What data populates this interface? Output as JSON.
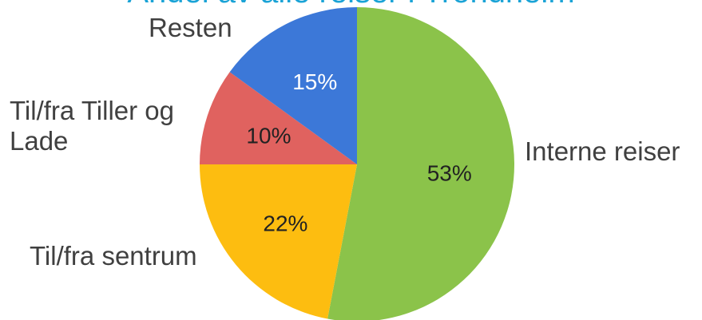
{
  "chart_data": {
    "type": "pie",
    "title": "Andel av alle reiser i Trondheim",
    "start_angle_deg": 0,
    "direction": "clockwise",
    "slices": [
      {
        "label": "Interne reiser",
        "value": 53,
        "value_label": "53%",
        "color": "#8bc34a"
      },
      {
        "label": "Til/fra sentrum",
        "value": 22,
        "value_label": "22%",
        "color": "#fdbd10"
      },
      {
        "label": "Til/fra Tiller og Lade",
        "value": 10,
        "value_label": "10%",
        "color": "#e0625f"
      },
      {
        "label": "Resten",
        "value": 15,
        "value_label": "15%",
        "color": "#3c78d8"
      }
    ]
  },
  "labels": {
    "slice0": "Interne reiser",
    "slice1": "Til/fra sentrum",
    "slice2": "Til/fra Tiller og\nLade",
    "slice3": "Resten"
  }
}
